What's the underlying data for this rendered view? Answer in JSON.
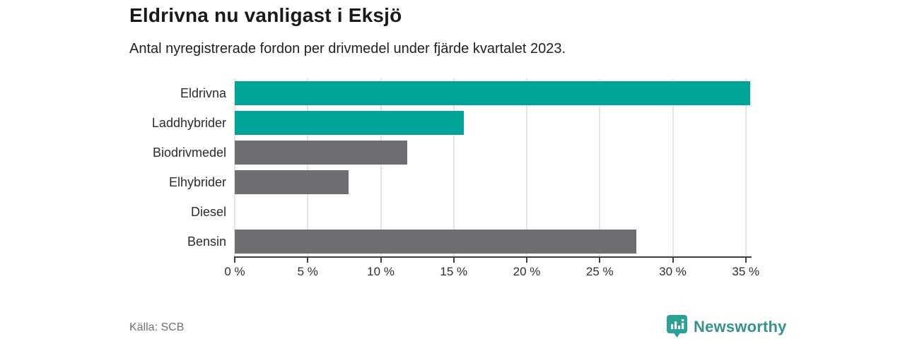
{
  "header": {
    "title": "Eldrivna nu vanligast i Eksjö",
    "subtitle": "Antal nyregistrerade fordon per drivmedel under fjärde kvartalet 2023."
  },
  "chart_data": {
    "type": "bar",
    "orientation": "horizontal",
    "title": "Eldrivna nu vanligast i Eksjö",
    "xlabel": "",
    "ylabel": "",
    "categories": [
      "Eldrivna",
      "Laddhybrider",
      "Biodrivmedel",
      "Elhybrider",
      "Diesel",
      "Bensin"
    ],
    "values": [
      35.3,
      15.7,
      11.8,
      7.8,
      0,
      27.5
    ],
    "bar_colors": [
      "#00a499",
      "#00a499",
      "#6e6e72",
      "#6e6e72",
      "#6e6e72",
      "#6e6e72"
    ],
    "x_tick_values": [
      0,
      5,
      10,
      15,
      20,
      25,
      30,
      35
    ],
    "x_tick_labels": [
      "0 %",
      "5 %",
      "10 %",
      "15 %",
      "20 %",
      "25 %",
      "30 %",
      "35 %"
    ],
    "xlim": [
      0,
      35.35
    ],
    "grid": "vertical",
    "legend": "none"
  },
  "footer": {
    "source": "Källa: SCB",
    "brand": "Newsworthy"
  },
  "colors": {
    "accent_teal": "#00a499",
    "bar_gray": "#6e6e72",
    "logo_teal": "#38928c",
    "grid": "#e4e4e4",
    "axis": "#3f3f3f",
    "text_dark": "#1a1a1a",
    "text_muted": "#70707a"
  }
}
